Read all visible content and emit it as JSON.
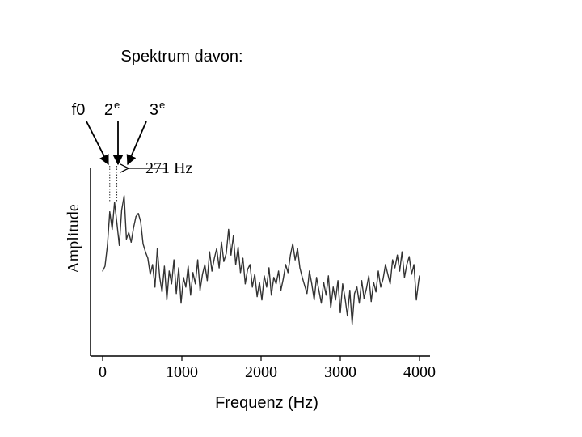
{
  "header": {
    "title": "Spektrum davon:"
  },
  "harmonics": {
    "f0": {
      "label": "f0",
      "x": 90
    },
    "h2": {
      "label": "2",
      "sup": "e",
      "x": 180
    },
    "h3": {
      "label": "3",
      "sup": "e",
      "x": 271
    }
  },
  "annotation": {
    "text": "271 Hz"
  },
  "chart_data": {
    "type": "line",
    "xlabel": "Frequenz (Hz)",
    "ylabel": "Amplitude",
    "xlim": [
      0,
      4000
    ],
    "ylim": [
      0,
      1
    ],
    "x_ticks": [
      "0",
      "1000",
      "2000",
      "3000",
      "4000"
    ],
    "grid": false,
    "series": [
      {
        "x": [
          0,
          30,
          60,
          90,
          120,
          150,
          180,
          210,
          240,
          271,
          300,
          330,
          360,
          390,
          420,
          450,
          480,
          510,
          540,
          570,
          600,
          630,
          660,
          690,
          720,
          750,
          780,
          810,
          840,
          870,
          900,
          930,
          960,
          990,
          1020,
          1050,
          1080,
          1110,
          1140,
          1170,
          1200,
          1230,
          1260,
          1290,
          1320,
          1350,
          1380,
          1410,
          1440,
          1470,
          1500,
          1530,
          1560,
          1590,
          1620,
          1650,
          1680,
          1710,
          1740,
          1770,
          1800,
          1830,
          1860,
          1890,
          1920,
          1950,
          1980,
          2010,
          2040,
          2070,
          2100,
          2130,
          2160,
          2190,
          2220,
          2250,
          2280,
          2310,
          2340,
          2370,
          2400,
          2430,
          2460,
          2490,
          2520,
          2550,
          2580,
          2610,
          2640,
          2670,
          2700,
          2730,
          2760,
          2790,
          2820,
          2850,
          2880,
          2910,
          2940,
          2970,
          3000,
          3030,
          3060,
          3090,
          3120,
          3150,
          3180,
          3210,
          3240,
          3270,
          3300,
          3330,
          3360,
          3390,
          3420,
          3450,
          3480,
          3510,
          3540,
          3570,
          3600,
          3630,
          3660,
          3690,
          3720,
          3750,
          3780,
          3810,
          3840,
          3870,
          3900,
          3930,
          3960,
          3990,
          4000
        ],
        "y": [
          0.48,
          0.51,
          0.64,
          0.85,
          0.74,
          0.91,
          0.78,
          0.64,
          0.86,
          0.95,
          0.68,
          0.72,
          0.66,
          0.75,
          0.82,
          0.84,
          0.79,
          0.65,
          0.6,
          0.56,
          0.46,
          0.52,
          0.38,
          0.62,
          0.44,
          0.35,
          0.51,
          0.3,
          0.48,
          0.4,
          0.55,
          0.34,
          0.5,
          0.28,
          0.44,
          0.38,
          0.51,
          0.33,
          0.47,
          0.4,
          0.55,
          0.36,
          0.46,
          0.52,
          0.42,
          0.6,
          0.48,
          0.56,
          0.62,
          0.5,
          0.66,
          0.54,
          0.59,
          0.74,
          0.58,
          0.7,
          0.52,
          0.63,
          0.47,
          0.56,
          0.4,
          0.49,
          0.52,
          0.38,
          0.46,
          0.32,
          0.41,
          0.3,
          0.45,
          0.38,
          0.5,
          0.33,
          0.44,
          0.4,
          0.48,
          0.36,
          0.43,
          0.52,
          0.47,
          0.58,
          0.65,
          0.55,
          0.62,
          0.5,
          0.44,
          0.39,
          0.34,
          0.48,
          0.4,
          0.3,
          0.44,
          0.36,
          0.28,
          0.41,
          0.33,
          0.45,
          0.25,
          0.38,
          0.3,
          0.42,
          0.22,
          0.4,
          0.31,
          0.2,
          0.36,
          0.15,
          0.34,
          0.38,
          0.28,
          0.42,
          0.31,
          0.37,
          0.45,
          0.29,
          0.41,
          0.35,
          0.48,
          0.38,
          0.43,
          0.52,
          0.46,
          0.4,
          0.55,
          0.5,
          0.58,
          0.48,
          0.6,
          0.44,
          0.52,
          0.57,
          0.46,
          0.52,
          0.3,
          0.42,
          0.45
        ]
      }
    ]
  }
}
